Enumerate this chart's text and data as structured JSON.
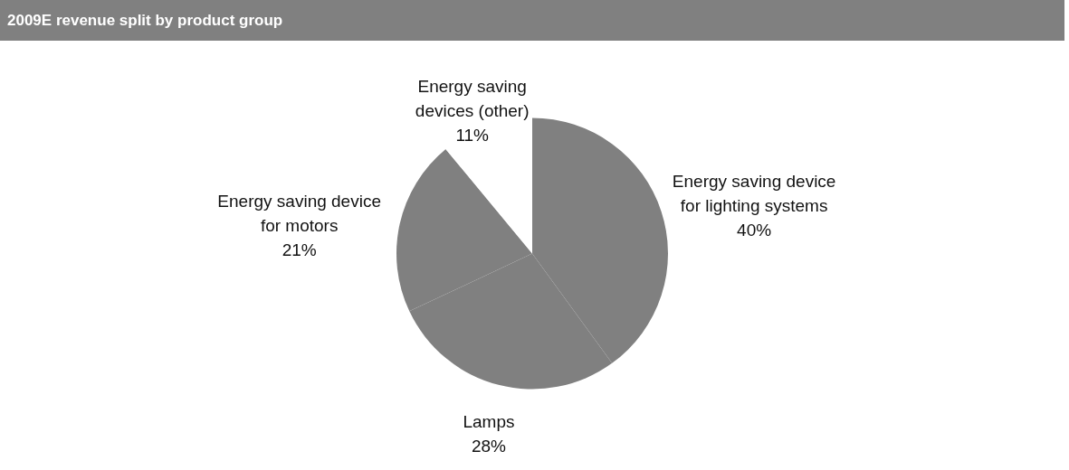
{
  "chart_data": {
    "type": "pie",
    "title": "2009E revenue split by product group",
    "categories": [
      "Energy saving device for lighting systems",
      "Lamps",
      "Energy saving device for motors",
      "Energy saving devices (other)"
    ],
    "values": [
      40,
      28,
      21,
      11
    ],
    "value_labels": [
      "40%",
      "28%",
      "21%",
      "11%"
    ],
    "colors": [
      "#808080",
      "#808080",
      "#808080",
      "#ffffff"
    ],
    "legend": false
  }
}
